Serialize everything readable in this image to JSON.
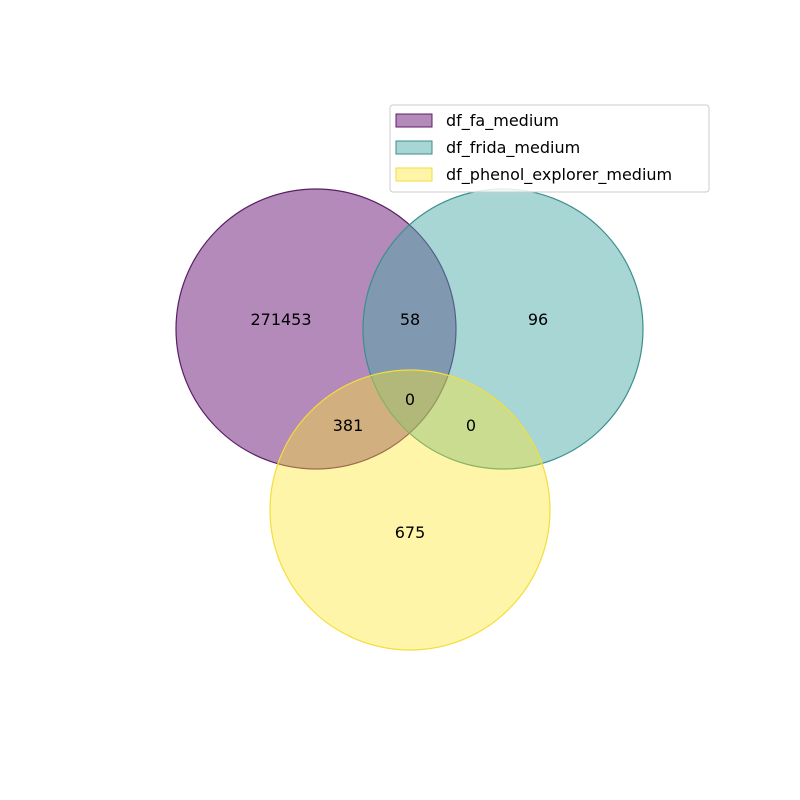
{
  "chart_data": {
    "type": "venn3",
    "title": "",
    "sets": [
      {
        "name": "df_fa_medium",
        "color": "#762a83"
      },
      {
        "name": "df_frida_medium",
        "color": "#3ba3a3"
      },
      {
        "name": "df_phenol_explorer_medium",
        "color": "#fde725"
      }
    ],
    "regions": {
      "only_fa": "271453",
      "only_frida": "96",
      "fa_frida": "58",
      "fa_frida_phenol": "0",
      "fa_phenol": "381",
      "frida_phenol": "0",
      "only_phenol": "675"
    },
    "legend_placement": "top-right"
  }
}
